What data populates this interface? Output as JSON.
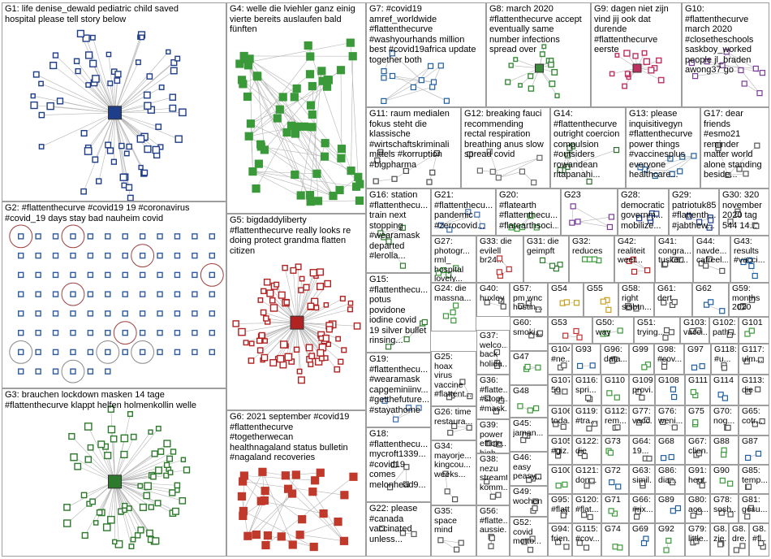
{
  "groups": [
    {
      "id": "G1",
      "label": "G1: life denise_dewald pediatric child saved\nhospital please tell story below",
      "nodes": 70,
      "color": "#1f3e8a",
      "layout": "radial"
    },
    {
      "id": "G2",
      "label": "G2: #flattenthecurve #covid19 19 #coronavirus\n#covid_19 days stay bad nauheim covid",
      "nodes": 90,
      "color": "#2d5aa0",
      "layout": "grid"
    },
    {
      "id": "G3",
      "label": "G3: brauchen lockdown masken 14 tage\n#flattenthecurve klappt helfen holmenkollin welle",
      "nodes": 70,
      "color": "#2d7a2d",
      "layout": "radial"
    },
    {
      "id": "G4",
      "label": "G4: welle die lviehler ganz einig\nvierte bereits auslaufen bald\nfünften",
      "nodes": 60,
      "color": "#3a9a3a",
      "layout": "cluster"
    },
    {
      "id": "G5",
      "label": "G5: bigdaddyliberty\n#flattenthecurve really looks re\ndoing protect grandma flatten\ncitizen",
      "nodes": 80,
      "color": "#b22222",
      "layout": "radial"
    },
    {
      "id": "G6",
      "label": "G6: 2021 september #covid19\n#flattenthecurve\n#togetherwecan\nhealthnagaland status bulletin\n#nagaland recoveries",
      "nodes": 30,
      "color": "#c0392b",
      "layout": "cluster"
    },
    {
      "id": "G7",
      "label": "G7: #covid19\namref_worldwide\n#flattenthecurve\n#washyourhands million\nbest #covid19africa update\ntogether both",
      "nodes": 12,
      "color": "#1f5fa0",
      "layout": "scatter"
    },
    {
      "id": "G8",
      "label": "G8: march 2020\n#flattenthecurve accept\neventually same\nnumber infections\nspread over",
      "nodes": 14,
      "color": "#3a8a3a",
      "layout": "radial"
    },
    {
      "id": "G9",
      "label": "G9: dagen niet zijn\nvind jij ook dat\ndurende\n#flattenthecurve\neerste",
      "nodes": 14,
      "color": "#c03060",
      "layout": "radial"
    },
    {
      "id": "G10",
      "label": "G10:\n#flattenthecurve\nmarch 2020\n#closetheschools\nsaskboy_worked\npeople jl_braden\nawong37 go",
      "nodes": 10,
      "color": "#7a3a9a",
      "layout": "scatter"
    },
    {
      "id": "G11",
      "label": "G11: raum medialen\nfokus steht die\nklassische\n#wirtschaftskriminali\nmittels #korruption\n#bigpharma",
      "nodes": 8,
      "color": "#4a4a4a",
      "layout": "scatter"
    },
    {
      "id": "G12",
      "label": "G12: breaking fauci\nrecommending\nrectal respiration\nbreathing anus slow\nspread covid",
      "nodes": 8,
      "color": "#666666",
      "layout": "scatter"
    },
    {
      "id": "G14",
      "label": "G14:\n#flattenthecurve\noutright coercion\ncompulsion\n#outsiders\nrowandean\nritapanahi...",
      "nodes": 8,
      "color": "#2d6a2d",
      "layout": "scatter"
    },
    {
      "id": "G13",
      "label": "G13: please\ninquisitivegyn\n#flattenthecurve\npower things\n#vaccinesplus\neveryone\nhealthcare...",
      "nodes": 8,
      "color": "#1f5fa0",
      "layout": "scatter"
    },
    {
      "id": "G17",
      "label": "G17: dear\nfriends\n#esmo21\nreminder\nmatter world\nalone standing\nbeside...",
      "nodes": 6,
      "color": "#555555",
      "layout": "scatter"
    },
    {
      "id": "G16",
      "label": "G16: station\n#flattenthecu...\ntrain next\nstopping\n#wearamask\ndeparted\n#lerolla...",
      "nodes": 5,
      "color": "#2d7a2d",
      "layout": "scatter"
    },
    {
      "id": "G21",
      "label": "G21:\n#flattenthecu...\npandemic\n#zerocovid...",
      "nodes": 5,
      "color": "#3a6ab0",
      "layout": "scatter"
    },
    {
      "id": "G20",
      "label": "G20:\n#flatearth\n#flattenthecu...\n#flatearthsoci...",
      "nodes": 5,
      "color": "#3a9a3a",
      "layout": "scatter"
    },
    {
      "id": "G23",
      "label": "G23",
      "nodes": 5,
      "color": "#7a3a9a",
      "layout": "scatter"
    },
    {
      "id": "G28",
      "label": "G28:\ndemocratic\ngovernm...\nmobilize...",
      "nodes": 5,
      "color": "#1f3e8a",
      "layout": "scatter"
    },
    {
      "id": "G29",
      "label": "G29:\npatriotuk85\n#flattenth...\n#jabthew...",
      "nodes": 5,
      "color": "#1f3e8a",
      "layout": "scatter"
    },
    {
      "id": "G30",
      "label": "G30: 320\nnovember\n2020 tag\n544 14...",
      "nodes": 5,
      "color": "#555555",
      "layout": "scatter"
    },
    {
      "id": "G27",
      "label": "G27:\nphotogr...\nrml_\nhospital\nlovely...",
      "nodes": 4,
      "color": "#3a9a3a",
      "layout": "scatter"
    },
    {
      "id": "G33",
      "label": "G33: die\nevilell\nbr24...",
      "nodes": 4,
      "color": "#c03030",
      "layout": "scatter"
    },
    {
      "id": "G31",
      "label": "G31: die\ngeimpft",
      "nodes": 4,
      "color": "#2d7a2d",
      "layout": "scatter"
    },
    {
      "id": "G32",
      "label": "G32:\nreduces",
      "nodes": 4,
      "color": "#3a9a3a",
      "layout": "scatter"
    },
    {
      "id": "G42",
      "label": "G42:\nrealiteit\nweet...",
      "nodes": 4,
      "color": "#b22222",
      "layout": "scatter"
    },
    {
      "id": "G41",
      "label": "G41:\ncongra...\ntusker...",
      "nodes": 4,
      "color": "#555555",
      "layout": "scatter"
    },
    {
      "id": "G44",
      "label": "G44:\nnavde...\ncafreel...",
      "nodes": 4,
      "color": "#555555",
      "layout": "scatter"
    },
    {
      "id": "G43",
      "label": "G43:\nresults\n#vacci...",
      "nodes": 4,
      "color": "#1f5fa0",
      "layout": "scatter"
    },
    {
      "id": "G15",
      "label": "G15:\n#flattenthecu...\npotus\npovidone\niodine covid\n19 silver bullet\nrinsing...",
      "nodes": 4,
      "color": "#2d7a2d",
      "layout": "scatter"
    },
    {
      "id": "G24",
      "label": "G24: die\nmassna...",
      "nodes": 4,
      "color": "#3a9a3a",
      "layout": "scatter"
    },
    {
      "id": "G40",
      "label": "G40:\nhuxley",
      "nodes": 3,
      "color": "#555555",
      "layout": "scatter"
    },
    {
      "id": "G57",
      "label": "G57:\npm wnc\nhostin...",
      "nodes": 3,
      "color": "#555555",
      "layout": "scatter"
    },
    {
      "id": "G54",
      "label": "G54",
      "nodes": 3,
      "color": "#c8a020",
      "layout": "scatter"
    },
    {
      "id": "G55",
      "label": "G55",
      "nodes": 3,
      "color": "#c8a020",
      "layout": "scatter"
    },
    {
      "id": "G58",
      "label": "G58:\nright\nseibtn...",
      "nodes": 3,
      "color": "#555555",
      "layout": "scatter"
    },
    {
      "id": "G61",
      "label": "G61:\ndert",
      "nodes": 3,
      "color": "#555555",
      "layout": "scatter"
    },
    {
      "id": "G62",
      "label": "G62",
      "nodes": 3,
      "color": "#1f5fa0",
      "layout": "scatter"
    },
    {
      "id": "G59",
      "label": "G59:\nmonths\n2020",
      "nodes": 3,
      "color": "#555555",
      "layout": "scatter"
    },
    {
      "id": "G19",
      "label": "G19:\n#flattenthecu...\n#wearamask\ncapgeminiinv...\n#getthefuture...\n#stayathome",
      "nodes": 4,
      "color": "#3a6ab0",
      "layout": "scatter"
    },
    {
      "id": "G37",
      "label": "G37:\nwelco...\nback\nholida...",
      "nodes": 3,
      "color": "#555555",
      "layout": "scatter"
    },
    {
      "id": "G60",
      "label": "G60:\nsmoki...",
      "nodes": 3,
      "color": "#555555",
      "layout": "scatter"
    },
    {
      "id": "G53",
      "label": "G53",
      "nodes": 3,
      "color": "#c03030",
      "layout": "scatter"
    },
    {
      "id": "G50",
      "label": "G50: way",
      "nodes": 3,
      "color": "#3a9a3a",
      "layout": "scatter"
    },
    {
      "id": "G51",
      "label": "G51:\ntrying...",
      "nodes": 3,
      "color": "#555555",
      "layout": "scatter"
    },
    {
      "id": "G103",
      "label": "G103:\nvacci...",
      "nodes": 2,
      "color": "#555555",
      "layout": "scatter"
    },
    {
      "id": "G102",
      "label": "G102:\npath...",
      "nodes": 2,
      "color": "#555555",
      "layout": "scatter"
    },
    {
      "id": "G101",
      "label": "G101",
      "nodes": 2,
      "color": "#3a9a3a",
      "layout": "scatter"
    },
    {
      "id": "G25",
      "label": "G25:\nhoax\nvirus\nvaccine\n#flattent...",
      "nodes": 4,
      "color": "#555555",
      "layout": "scatter"
    },
    {
      "id": "G47",
      "label": "G47",
      "nodes": 3,
      "color": "#3a9a3a",
      "layout": "scatter"
    },
    {
      "id": "G104",
      "label": "G104:\n#ne...",
      "nodes": 2,
      "color": "#555555",
      "layout": "scatter"
    },
    {
      "id": "G93",
      "label": "G93",
      "nodes": 2,
      "color": "#1f5fa0",
      "layout": "scatter"
    },
    {
      "id": "G96",
      "label": "G96:\ndata...",
      "nodes": 2,
      "color": "#555555",
      "layout": "scatter"
    },
    {
      "id": "G99",
      "label": "G99",
      "nodes": 2,
      "color": "#3a9a3a",
      "layout": "scatter"
    },
    {
      "id": "G98",
      "label": "G98:\n#cov...",
      "nodes": 2,
      "color": "#555555",
      "layout": "scatter"
    },
    {
      "id": "G97",
      "label": "G97",
      "nodes": 2,
      "color": "#1f5fa0",
      "layout": "scatter"
    },
    {
      "id": "G118",
      "label": "G118:\n#u...",
      "nodes": 2,
      "color": "#555555",
      "layout": "scatter"
    },
    {
      "id": "G117",
      "label": "G117:\nulm...",
      "nodes": 2,
      "color": "#555555",
      "layout": "scatter"
    },
    {
      "id": "G36",
      "label": "G36:\n#flatte...\n#stopt...\n#mask...",
      "nodes": 3,
      "color": "#555555",
      "layout": "scatter"
    },
    {
      "id": "G48",
      "label": "G48",
      "nodes": 3,
      "color": "#3a9a3a",
      "layout": "scatter"
    },
    {
      "id": "G107",
      "label": "G107:\n50",
      "nodes": 2,
      "color": "#555555",
      "layout": "scatter"
    },
    {
      "id": "G116",
      "label": "G116:\nspri...",
      "nodes": 2,
      "color": "#555555",
      "layout": "scatter"
    },
    {
      "id": "G110",
      "label": "G110",
      "nodes": 2,
      "color": "#3a9a3a",
      "layout": "scatter"
    },
    {
      "id": "G109",
      "label": "G109:\nprovi...",
      "nodes": 2,
      "color": "#555555",
      "layout": "scatter"
    },
    {
      "id": "G108",
      "label": "G108",
      "nodes": 2,
      "color": "#1f5fa0",
      "layout": "scatter"
    },
    {
      "id": "G111",
      "label": "G111",
      "nodes": 2,
      "color": "#3a9a3a",
      "layout": "scatter"
    },
    {
      "id": "G114",
      "label": "G114",
      "nodes": 2,
      "color": "#1f5fa0",
      "layout": "scatter"
    },
    {
      "id": "G113",
      "label": "G113:\ndie",
      "nodes": 2,
      "color": "#555555",
      "layout": "scatter"
    },
    {
      "id": "G26",
      "label": "G26: time\nrestaura...",
      "nodes": 3,
      "color": "#555555",
      "layout": "scatter"
    },
    {
      "id": "G45",
      "label": "G45:\njaman...",
      "nodes": 3,
      "color": "#555555",
      "layout": "scatter"
    },
    {
      "id": "G106",
      "label": "G106:\ntoda...",
      "nodes": 2,
      "color": "#555555",
      "layout": "scatter"
    },
    {
      "id": "G119",
      "label": "G119:\n#tra...",
      "nodes": 2,
      "color": "#555555",
      "layout": "scatter"
    },
    {
      "id": "G112",
      "label": "G112:\nrem...",
      "nodes": 2,
      "color": "#555555",
      "layout": "scatter"
    },
    {
      "id": "G77",
      "label": "G77:\nvacc...",
      "nodes": 2,
      "color": "#555555",
      "layout": "scatter"
    },
    {
      "id": "G76",
      "label": "G76:\nweni...",
      "nodes": 2,
      "color": "#555555",
      "layout": "scatter"
    },
    {
      "id": "G75",
      "label": "G75",
      "nodes": 2,
      "color": "#3a9a3a",
      "layout": "scatter"
    },
    {
      "id": "G70",
      "label": "G70:\nnog...",
      "nodes": 2,
      "color": "#555555",
      "layout": "scatter"
    },
    {
      "id": "G65",
      "label": "G65:\ncotr...",
      "nodes": 2,
      "color": "#555555",
      "layout": "scatter"
    },
    {
      "id": "G18",
      "label": "G18:\n#flattenthecu...\nmycroft1339...\n#covid19\ncomes\nmelonhead9...",
      "nodes": 4,
      "color": "#555555",
      "layout": "scatter"
    },
    {
      "id": "G39",
      "label": "G39:\npower\nefficie...\nhigh...",
      "nodes": 3,
      "color": "#555555",
      "layout": "scatter"
    },
    {
      "id": "G105",
      "label": "G105:\n#giz...",
      "nodes": 2,
      "color": "#555555",
      "layout": "scatter"
    },
    {
      "id": "G122",
      "label": "G122:\ndie",
      "nodes": 2,
      "color": "#555555",
      "layout": "scatter"
    },
    {
      "id": "G73",
      "label": "G73",
      "nodes": 2,
      "color": "#3a9a3a",
      "layout": "scatter"
    },
    {
      "id": "G64",
      "label": "G64:\n19...",
      "nodes": 2,
      "color": "#555555",
      "layout": "scatter"
    },
    {
      "id": "G68",
      "label": "G68",
      "nodes": 2,
      "color": "#1f5fa0",
      "layout": "scatter"
    },
    {
      "id": "G67",
      "label": "G67:\nclien...",
      "nodes": 2,
      "color": "#555555",
      "layout": "scatter"
    },
    {
      "id": "G88",
      "label": "G88",
      "nodes": 2,
      "color": "#3a9a3a",
      "layout": "scatter"
    },
    {
      "id": "G87",
      "label": "G87",
      "nodes": 2,
      "color": "#1f5fa0",
      "layout": "scatter"
    },
    {
      "id": "G46",
      "label": "G46:\neasy\npeasy...",
      "nodes": 3,
      "color": "#555555",
      "layout": "scatter"
    },
    {
      "id": "G100",
      "label": "G100",
      "nodes": 2,
      "color": "#3a9a3a",
      "layout": "scatter"
    },
    {
      "id": "G121",
      "label": "G121:\ndon...",
      "nodes": 2,
      "color": "#555555",
      "layout": "scatter"
    },
    {
      "id": "G72",
      "label": "G72",
      "nodes": 2,
      "color": "#1f5fa0",
      "layout": "scatter"
    },
    {
      "id": "G63",
      "label": "G63:\nsimil...",
      "nodes": 2,
      "color": "#555555",
      "layout": "scatter"
    },
    {
      "id": "G86",
      "label": "G86:\ndia...",
      "nodes": 2,
      "color": "#555555",
      "layout": "scatter"
    },
    {
      "id": "G91",
      "label": "G91:\nheut...",
      "nodes": 2,
      "color": "#555555",
      "layout": "scatter"
    },
    {
      "id": "G90",
      "label": "G90",
      "nodes": 2,
      "color": "#3a9a3a",
      "layout": "scatter"
    },
    {
      "id": "G85",
      "label": "G85:\ntemp...",
      "nodes": 2,
      "color": "#555555",
      "layout": "scatter"
    },
    {
      "id": "G34",
      "label": "G34:\nmayorje...\nkingcou...\nweeks...",
      "nodes": 3,
      "color": "#555555",
      "layout": "scatter"
    },
    {
      "id": "G38",
      "label": "G38:\nnezu\nstreamt\nkomm...",
      "nodes": 3,
      "color": "#555555",
      "layout": "scatter"
    },
    {
      "id": "G49",
      "label": "G49:\nwochen",
      "nodes": 3,
      "color": "#555555",
      "layout": "scatter"
    },
    {
      "id": "G95",
      "label": "G95:\n#flatt...",
      "nodes": 2,
      "color": "#555555",
      "layout": "scatter"
    },
    {
      "id": "G120",
      "label": "G120:\n#flat...",
      "nodes": 2,
      "color": "#555555",
      "layout": "scatter"
    },
    {
      "id": "G71",
      "label": "G71",
      "nodes": 2,
      "color": "#3a9a3a",
      "layout": "scatter"
    },
    {
      "id": "G66",
      "label": "G66:\n#rix...",
      "nodes": 2,
      "color": "#555555",
      "layout": "scatter"
    },
    {
      "id": "G89",
      "label": "G89",
      "nodes": 2,
      "color": "#1f5fa0",
      "layout": "scatter"
    },
    {
      "id": "G80",
      "label": "G80:\nacc...",
      "nodes": 2,
      "color": "#555555",
      "layout": "scatter"
    },
    {
      "id": "G78",
      "label": "G78:\nsosh...",
      "nodes": 2,
      "color": "#555555",
      "layout": "scatter"
    },
    {
      "id": "G81",
      "label": "G81:\ngesu...",
      "nodes": 2,
      "color": "#555555",
      "layout": "scatter"
    },
    {
      "id": "G22",
      "label": "G22: please\n#canada\nvaccinated\nunless...",
      "nodes": 3,
      "color": "#555555",
      "layout": "scatter"
    },
    {
      "id": "G35",
      "label": "G35:\nspace\nmind",
      "nodes": 3,
      "color": "#555555",
      "layout": "scatter"
    },
    {
      "id": "G56",
      "label": "G56:\n#flatte...\naussie...",
      "nodes": 3,
      "color": "#555555",
      "layout": "scatter"
    },
    {
      "id": "G52",
      "label": "G52:\ncovid\nmotto...",
      "nodes": 3,
      "color": "#555555",
      "layout": "scatter"
    },
    {
      "id": "G94",
      "label": "G94:\nfrien...",
      "nodes": 2,
      "color": "#555555",
      "layout": "scatter"
    },
    {
      "id": "G115",
      "label": "G115:\n#cov...",
      "nodes": 2,
      "color": "#555555",
      "layout": "scatter"
    },
    {
      "id": "G74",
      "label": "G74",
      "nodes": 2,
      "color": "#3a9a3a",
      "layout": "scatter"
    },
    {
      "id": "G69",
      "label": "G69",
      "nodes": 2,
      "color": "#1f5fa0",
      "layout": "scatter"
    },
    {
      "id": "G92",
      "label": "G92",
      "nodes": 2,
      "color": "#3a9a3a",
      "layout": "scatter"
    },
    {
      "id": "G79",
      "label": "G79:\nlittle...",
      "nodes": 2,
      "color": "#555555",
      "layout": "scatter"
    },
    {
      "id": "G82",
      "label": "G8...\nzie...",
      "nodes": 2,
      "color": "#555555",
      "layout": "scatter"
    },
    {
      "id": "G83",
      "label": "G8...\ndre...",
      "nodes": 2,
      "color": "#555555",
      "layout": "scatter"
    },
    {
      "id": "G84",
      "label": "G8...\n#fl...",
      "nodes": 2,
      "color": "#555555",
      "layout": "scatter"
    }
  ],
  "colors": {
    "cell_border": "#9e9e9e",
    "edge": "#b4b4b4",
    "node_fill": "#ffffff",
    "background": "#ffffff"
  }
}
